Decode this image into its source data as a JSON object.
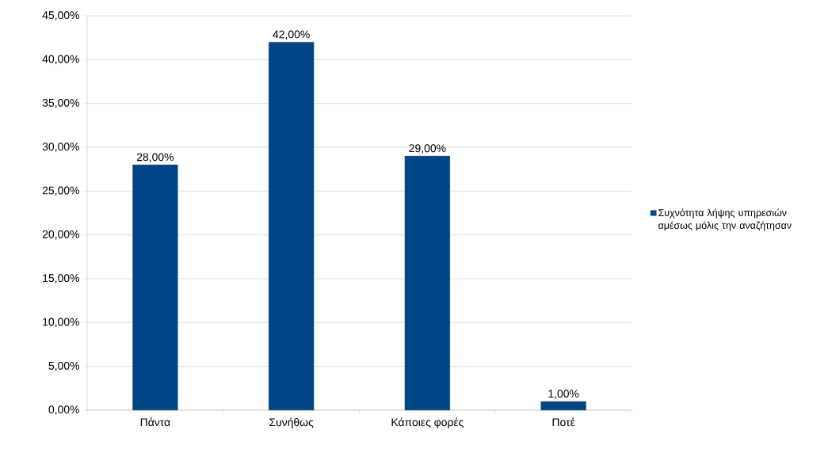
{
  "chart_data": {
    "type": "bar",
    "categories": [
      "Πάντα",
      "Συνήθως",
      "Κάποιες φορές",
      "Ποτέ"
    ],
    "series": [
      {
        "name": "Συχνότητα λήψης υπηρεσιών αμέσως μόλις την αναζήτησαν",
        "color": "#004586",
        "values": [
          28,
          42,
          29,
          1
        ],
        "value_labels": [
          "28,00%",
          "42,00%",
          "29,00%",
          "1,00%"
        ]
      }
    ],
    "ylim": [
      0,
      45
    ],
    "yticks": [
      {
        "value": 0,
        "label": "0,00%"
      },
      {
        "value": 5,
        "label": "5,00%"
      },
      {
        "value": 10,
        "label": "10,00%"
      },
      {
        "value": 15,
        "label": "15,00%"
      },
      {
        "value": 20,
        "label": "20,00%"
      },
      {
        "value": 25,
        "label": "25,00%"
      },
      {
        "value": 30,
        "label": "30,00%"
      },
      {
        "value": 35,
        "label": "35,00%"
      },
      {
        "value": 40,
        "label": "40,00%"
      },
      {
        "value": 45,
        "label": "45,00%"
      }
    ],
    "grid": "y",
    "legend": "right"
  }
}
